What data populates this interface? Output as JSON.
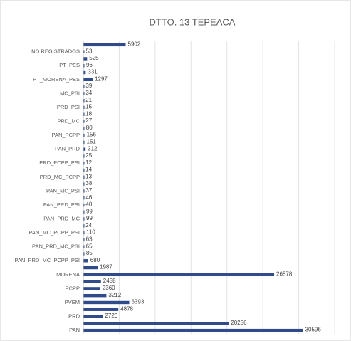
{
  "chart_data": {
    "type": "barh",
    "title": "DTTO. 13 TEPEACA",
    "categories": [
      null,
      "NO REGISTRADOS",
      null,
      "PT_PES",
      null,
      "PT_MORENA_PES",
      null,
      "MC_PSI",
      null,
      "PRD_PSI",
      null,
      "PRD_MC",
      null,
      "PAN_PCPP",
      null,
      "PAN_PRD",
      null,
      "PRD_PCPP_PSI",
      null,
      "PRD_MC_PCPP",
      null,
      "PAN_MC_PSI",
      null,
      "PAN_PRD_PSI",
      null,
      "PAN_PRD_MC",
      null,
      "PAN_MC_PCPP_PSI",
      null,
      "PAN_PRD_MC_PSI",
      null,
      "PAN_PRD_MC_PCPP_PSI",
      null,
      "MORENA",
      null,
      "PCPP",
      null,
      "PVEM",
      null,
      "PRD",
      null,
      "PAN"
    ],
    "values": [
      5902,
      53,
      525,
      96,
      331,
      1297,
      39,
      34,
      21,
      15,
      18,
      27,
      80,
      156,
      151,
      312,
      25,
      12,
      14,
      13,
      38,
      37,
      46,
      40,
      99,
      99,
      24,
      110,
      63,
      65,
      85,
      680,
      1987,
      26578,
      2458,
      2360,
      3212,
      6393,
      4878,
      2720,
      20256,
      30596
    ],
    "color": "#2f4b8a",
    "xlim": [
      0,
      35000
    ],
    "xticks": [
      0,
      5000,
      10000,
      15000,
      20000,
      25000,
      30000,
      35000
    ],
    "grid": true
  }
}
